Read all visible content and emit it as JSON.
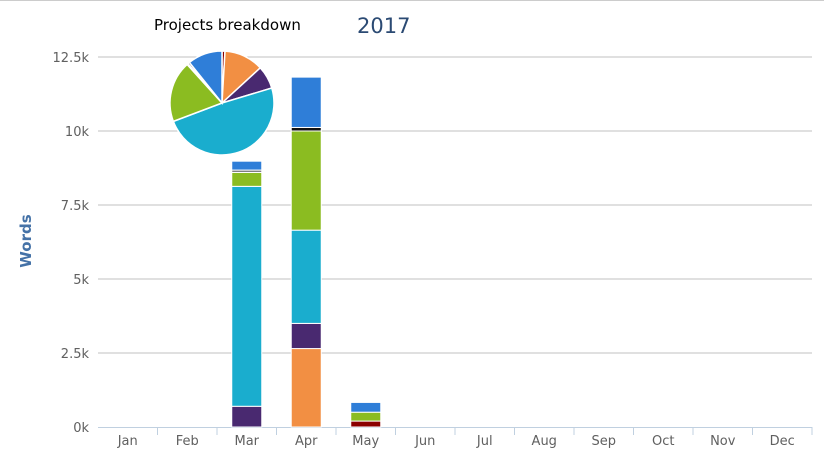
{
  "header": {
    "title": "Projects breakdown",
    "year": "2017"
  },
  "chart_data": {
    "type": "bar",
    "stacked": true,
    "title": "Projects breakdown",
    "xlabel": "",
    "ylabel": "Words",
    "ylim": [
      0,
      12500
    ],
    "yticks": [
      "0k",
      "2.5k",
      "5k",
      "7.5k",
      "10k",
      "12.5k"
    ],
    "grid": true,
    "categories": [
      "Jan",
      "Feb",
      "Mar",
      "Apr",
      "May",
      "Jun",
      "Jul",
      "Aug",
      "Sep",
      "Oct",
      "Nov",
      "Dec"
    ],
    "series": [
      {
        "color": "#8b0000",
        "values": [
          0,
          0,
          0,
          0,
          200,
          0,
          0,
          0,
          0,
          0,
          0,
          0
        ]
      },
      {
        "color": "#f28f43",
        "values": [
          0,
          0,
          0,
          2650,
          0,
          0,
          0,
          0,
          0,
          0,
          0,
          0
        ]
      },
      {
        "color": "#492970",
        "values": [
          0,
          0,
          700,
          850,
          0,
          0,
          0,
          0,
          0,
          0,
          0,
          0
        ]
      },
      {
        "color": "#1aadce",
        "values": [
          0,
          0,
          7430,
          3150,
          0,
          0,
          0,
          0,
          0,
          0,
          0,
          0
        ]
      },
      {
        "color": "#8bbc21",
        "values": [
          0,
          0,
          470,
          3350,
          300,
          0,
          0,
          0,
          0,
          0,
          0,
          0
        ]
      },
      {
        "color": "#77777a",
        "values": [
          0,
          0,
          80,
          0,
          0,
          0,
          0,
          0,
          0,
          0,
          0,
          0
        ]
      },
      {
        "color": "#111111",
        "values": [
          0,
          0,
          0,
          120,
          0,
          0,
          0,
          0,
          0,
          0,
          0,
          0
        ]
      },
      {
        "color": "#2f7ed8",
        "values": [
          0,
          0,
          300,
          1700,
          330,
          0,
          0,
          0,
          0,
          0,
          0,
          0
        ]
      }
    ],
    "inset_pie": {
      "type": "pie",
      "title": "Projects breakdown",
      "note": "series totals"
    }
  }
}
